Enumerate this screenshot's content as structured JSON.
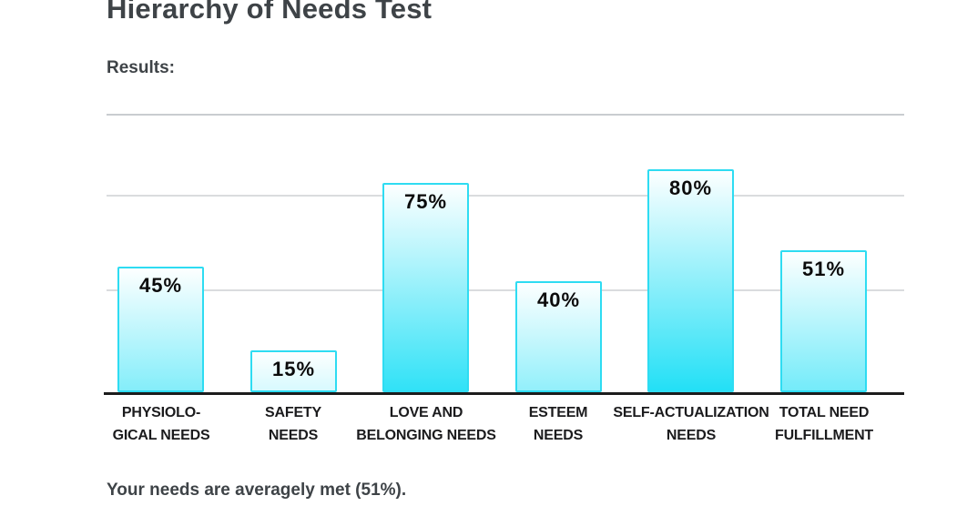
{
  "page": {
    "title": "Hierarchy of Needs Test",
    "results_label": "Results:",
    "summary": "Your needs are averagely met (51%)."
  },
  "colors": {
    "bar_border": "#2edcf2",
    "bar_gradient_top": "#fdffff",
    "bar_gradient_bottom": "#09dcf5",
    "axis": "#1c1c1c",
    "gridline": "#dadcde",
    "gridline_top": "#c9cdd0",
    "heading_text": "#3e4347",
    "category_text": "#1b1b1d",
    "value_text": "#0b0b0b"
  },
  "chart_data": {
    "type": "bar",
    "title": "Hierarchy of Needs Test — Results",
    "categories": [
      "Physiological needs",
      "Safety needs",
      "Love and belonging needs",
      "Esteem needs",
      "Self-actualization needs",
      "Total need fulfillment"
    ],
    "category_label_lines": [
      [
        "PHYSIOLO-",
        "GICAL NEEDS"
      ],
      [
        "SAFETY",
        "NEEDS"
      ],
      [
        "LOVE AND",
        "BELONGING NEEDS"
      ],
      [
        "ESTEEM",
        "NEEDS"
      ],
      [
        "SELF-ACTUALIZATION",
        "NEEDS"
      ],
      [
        "TOTAL NEED",
        "FULFILLMENT"
      ]
    ],
    "values": [
      45,
      15,
      75,
      40,
      80,
      51
    ],
    "value_labels": [
      "45%",
      "15%",
      "75%",
      "40%",
      "80%",
      "51%"
    ],
    "xlabel": "",
    "ylabel": "",
    "ylim": [
      0,
      100
    ],
    "grid": true,
    "gridline_values": [
      100,
      71,
      37
    ],
    "legend": false
  }
}
